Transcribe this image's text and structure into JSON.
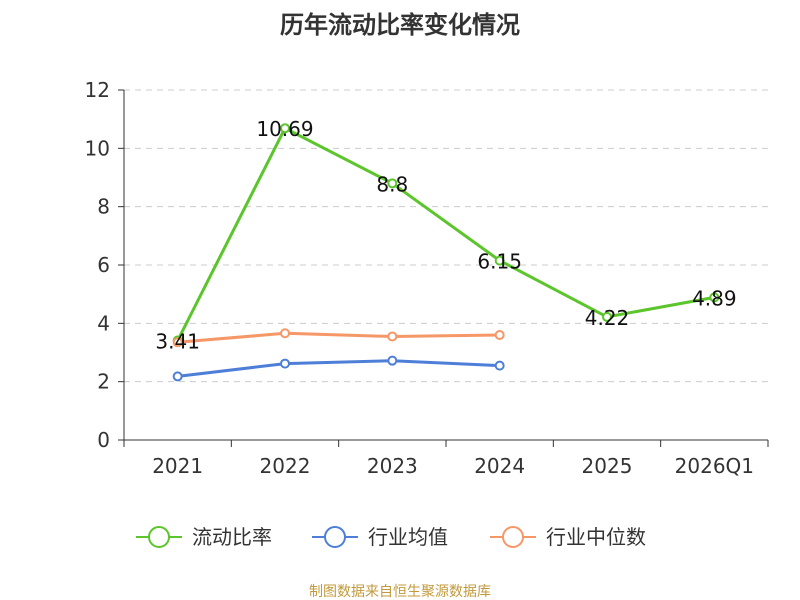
{
  "chart_data": {
    "type": "line",
    "title": "历年流动比率变化情况",
    "categories": [
      "2021",
      "2022",
      "2023",
      "2024",
      "2025",
      "2026Q1"
    ],
    "ylim": [
      0,
      12
    ],
    "yticks": [
      "0",
      "2",
      "4",
      "6",
      "8",
      "10",
      "12"
    ],
    "grid": "horizontal-dashed",
    "legend_position": "bottom",
    "series": [
      {
        "name": "流动比率",
        "color": "#5bc52b",
        "values": [
          3.41,
          10.69,
          8.8,
          6.15,
          4.22,
          4.89
        ],
        "labels": [
          "3.41",
          "10.69",
          "8.8",
          "6.15",
          "4.22",
          "4.89"
        ]
      },
      {
        "name": "行业均值",
        "color": "#4d7fd8",
        "values": [
          2.18,
          2.62,
          2.72,
          2.55,
          null,
          null
        ]
      },
      {
        "name": "行业中位数",
        "color": "#f59766",
        "values": [
          3.35,
          3.66,
          3.55,
          3.6,
          null,
          null
        ]
      }
    ],
    "source": "制图数据来自恒生聚源数据库"
  }
}
